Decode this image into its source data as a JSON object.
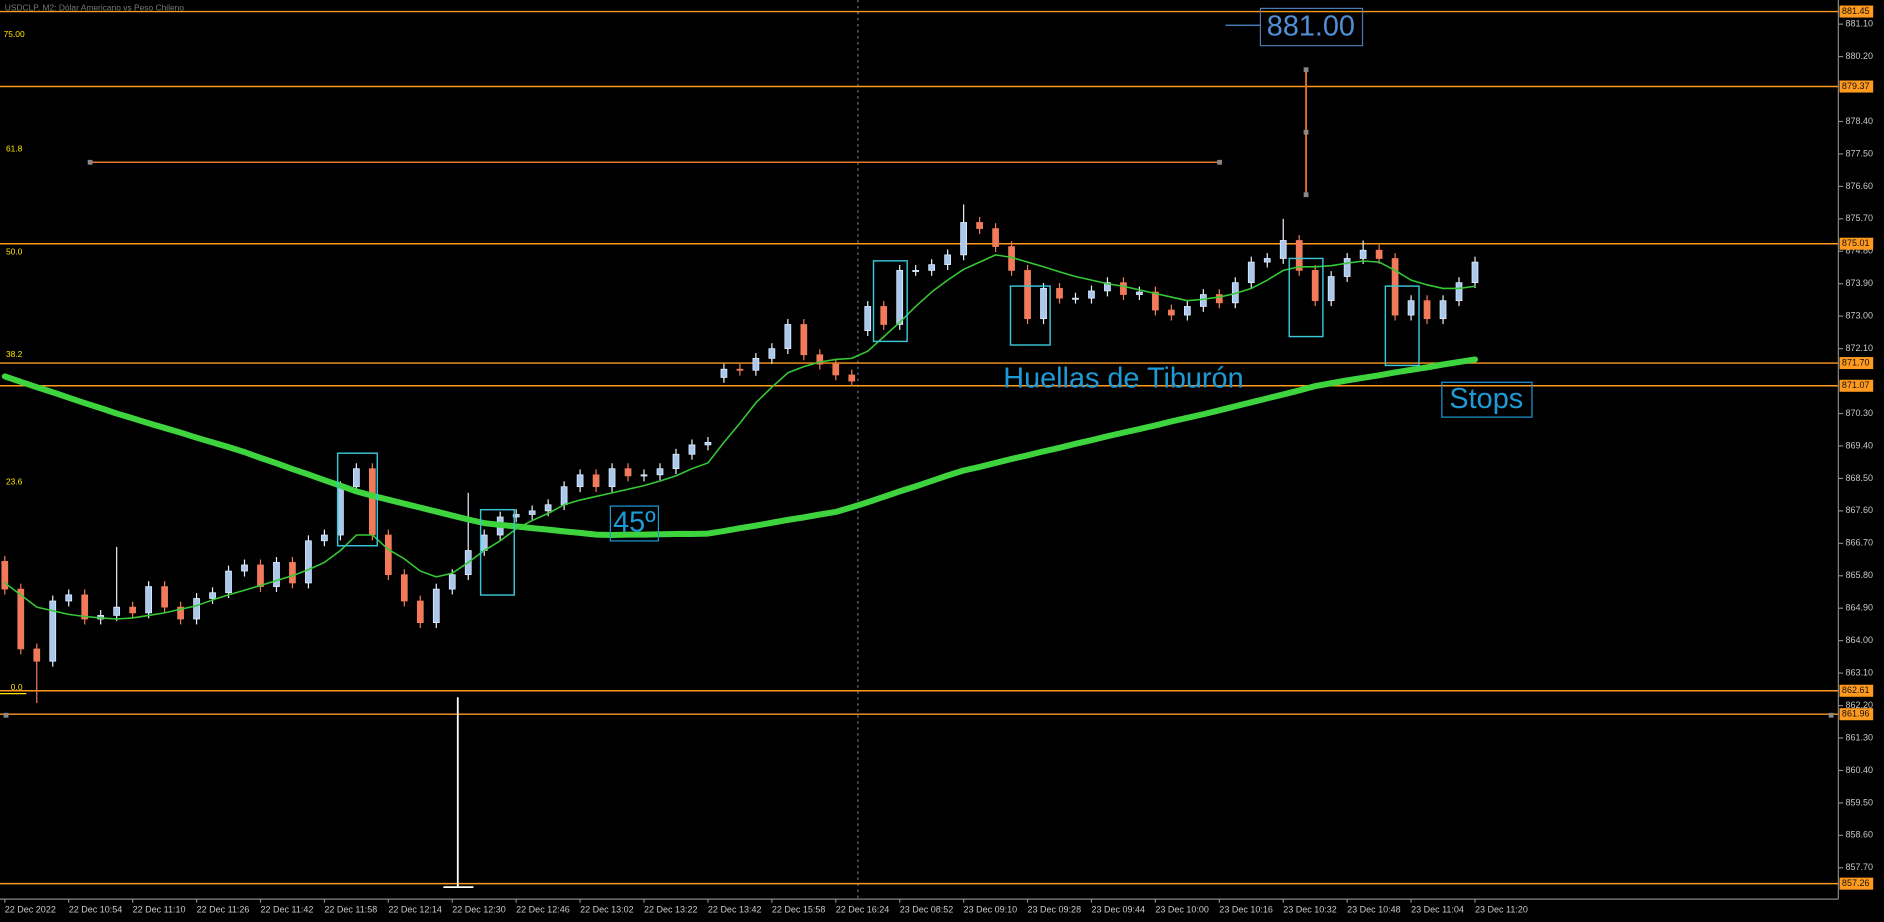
{
  "chart_data": {
    "type": "candlestick",
    "title": "USDCLP, M2: Dólar Americano vs Peso Chileno",
    "up_color": "#a8c8ee",
    "down_color": "#f07a5a",
    "level_color": "#ff9a1e",
    "grid": false,
    "ylim": [
      856.83,
      881.77
    ],
    "yticks": [
      {
        "value": 881.1,
        "label": "881.10"
      },
      {
        "value": 880.2,
        "label": "880.20"
      },
      {
        "value": 878.4,
        "label": "878.40"
      },
      {
        "value": 877.5,
        "label": "877.50"
      },
      {
        "value": 876.6,
        "label": "876.60"
      },
      {
        "value": 875.7,
        "label": "875.70"
      },
      {
        "value": 874.8,
        "label": "874.80"
      },
      {
        "value": 873.9,
        "label": "873.90"
      },
      {
        "value": 873,
        "label": "873.00"
      },
      {
        "value": 872.1,
        "label": "872.10"
      },
      {
        "value": 870.3,
        "label": "870.30"
      },
      {
        "value": 869.4,
        "label": "869.40"
      },
      {
        "value": 868.5,
        "label": "868.50"
      },
      {
        "value": 867.6,
        "label": "867.60"
      },
      {
        "value": 866.7,
        "label": "866.70"
      },
      {
        "value": 865.8,
        "label": "865.80"
      },
      {
        "value": 864.9,
        "label": "864.90"
      },
      {
        "value": 864,
        "label": "864.00"
      },
      {
        "value": 863.1,
        "label": "863.10"
      },
      {
        "value": 862.2,
        "label": "862.20"
      },
      {
        "value": 861.3,
        "label": "861.30"
      },
      {
        "value": 860.4,
        "label": "860.40"
      },
      {
        "value": 859.5,
        "label": "859.50"
      },
      {
        "value": 858.6,
        "label": "858.60"
      },
      {
        "value": 857.7,
        "label": "857.70"
      }
    ],
    "levels": [
      881.45,
      879.37,
      875.01,
      {
        "value": 871.7,
        "label": "871.70"
      },
      871.07,
      862.61,
      861.96,
      857.26
    ],
    "fib_labels": [
      "75.00",
      "61.8",
      "50.0",
      "38.2",
      "23.6",
      "0.0"
    ],
    "annotations": [
      "881.00",
      "Huellas de Tiburón",
      "Stops",
      "45º"
    ],
    "categories": [
      "22 Dec 2022",
      null,
      null,
      null,
      "22 Dec 10:54",
      null,
      null,
      null,
      "22 Dec 11:10",
      null,
      null,
      null,
      "22 Dec 11:26",
      null,
      null,
      null,
      "22 Dec 11:42",
      null,
      null,
      null,
      "22 Dec 11:58",
      null,
      null,
      null,
      "22 Dec 12:14",
      null,
      null,
      null,
      "22 Dec 12:30",
      null,
      null,
      null,
      "22 Dec 12:46",
      null,
      null,
      null,
      "22 Dec 13:02",
      null,
      null,
      null,
      "22 Dec 13:22",
      null,
      null,
      null,
      "22 Dec 13:42",
      null,
      null,
      null,
      "22 Dec 15:58",
      null,
      null,
      null,
      "22 Dec 16:24",
      null,
      null,
      null,
      "23 Dec 08:52",
      null,
      null,
      null,
      "23 Dec 09:10",
      null,
      null,
      null,
      "23 Dec 09:28",
      null,
      null,
      null,
      "23 Dec 09:44",
      null,
      null,
      null,
      "23 Dec 10:00",
      null,
      null,
      null,
      "23 Dec 10:16",
      null,
      null,
      null,
      "23 Dec 10:32",
      null,
      null,
      null,
      "23 Dec 10:48",
      null,
      null,
      null,
      "23 Dec 11:04",
      null,
      null,
      null,
      "23 Dec 11:20"
    ],
    "open": [
      866.2,
      865.43,
      863.77,
      863.43,
      865.1,
      865.27,
      864.6,
      864.7,
      864.93,
      864.77,
      865.5,
      864.93,
      864.6,
      865.17,
      865.33,
      865.93,
      866.1,
      865.5,
      866.17,
      865.6,
      866.77,
      866.93,
      868.27,
      868.77,
      866.93,
      865.83,
      865.1,
      864.5,
      865.43,
      865.83,
      866.5,
      866.93,
      867.43,
      867.5,
      867.6,
      867.77,
      868.27,
      868.6,
      868.27,
      868.77,
      868.57,
      868.6,
      868.77,
      869.17,
      869.43,
      871.3,
      871.53,
      871.5,
      871.83,
      872.1,
      872.77,
      871.93,
      871.67,
      871.37,
      872.6,
      873.27,
      872.77,
      874.27,
      874.27,
      874.43,
      874.7,
      875.6,
      875.43,
      874.93,
      874.27,
      872.93,
      873.77,
      873.5,
      873.5,
      873.7,
      873.93,
      873.6,
      873.67,
      873.17,
      873.03,
      873.27,
      873.6,
      873.37,
      873.93,
      874.5,
      874.6,
      875.1,
      874.27,
      873.43,
      874.1,
      874.6,
      874.83,
      874.6,
      873.03,
      873.43,
      872.93,
      873.43,
      873.93
    ],
    "high": [
      866.35,
      865.58,
      863.92,
      865.25,
      865.42,
      865.42,
      864.85,
      866.6,
      865.08,
      865.65,
      865.65,
      865.08,
      865.32,
      865.48,
      866.08,
      866.25,
      866.25,
      866.32,
      866.32,
      866.92,
      867.08,
      868.42,
      868.92,
      868.92,
      867.08,
      865.98,
      865.25,
      865.58,
      865.98,
      868.1,
      867.08,
      867.58,
      867.65,
      867.75,
      867.92,
      868.42,
      868.75,
      868.75,
      868.92,
      868.92,
      868.75,
      868.92,
      869.32,
      869.58,
      869.65,
      871.68,
      871.68,
      871.98,
      872.25,
      872.92,
      872.92,
      872.08,
      871.82,
      871.52,
      873.42,
      873.42,
      874.42,
      874.42,
      874.58,
      874.85,
      876.1,
      875.75,
      875.58,
      875.08,
      874.42,
      873.92,
      873.92,
      873.65,
      873.85,
      874.08,
      874.08,
      873.82,
      873.82,
      873.32,
      873.42,
      873.75,
      873.75,
      874.08,
      874.65,
      874.75,
      875.7,
      875.25,
      874.42,
      874.25,
      874.75,
      875.1,
      874.98,
      874.75,
      873.58,
      873.58,
      873.58,
      874.08,
      874.65
    ],
    "low": [
      865.28,
      863.62,
      862.27,
      863.28,
      864.95,
      864.45,
      864.45,
      864.55,
      864.62,
      864.62,
      864.78,
      864.45,
      864.45,
      865.02,
      865.18,
      865.78,
      865.35,
      865.35,
      865.45,
      865.45,
      866.62,
      866.78,
      868.12,
      866.78,
      865.68,
      864.95,
      864.35,
      864.35,
      865.28,
      865.68,
      866.35,
      866.78,
      867.28,
      867.35,
      867.45,
      867.62,
      868.12,
      868.12,
      868.12,
      868.42,
      868.42,
      868.45,
      868.62,
      869.02,
      869.28,
      871.15,
      871.35,
      871.35,
      871.68,
      871.95,
      871.78,
      871.52,
      871.22,
      871.05,
      872.45,
      872.62,
      872.62,
      874.12,
      874.12,
      874.28,
      874.55,
      875.28,
      874.78,
      874.12,
      872.78,
      872.78,
      873.35,
      873.35,
      873.35,
      873.55,
      873.45,
      873.45,
      873.02,
      872.88,
      872.88,
      873.12,
      873.22,
      873.22,
      873.78,
      874.35,
      874.45,
      874.12,
      873.28,
      873.28,
      873.95,
      874.45,
      874.45,
      872.88,
      872.88,
      872.78,
      872.78,
      873.28,
      873.78
    ],
    "close": [
      865.43,
      863.77,
      863.43,
      865.1,
      865.27,
      864.6,
      864.7,
      864.93,
      864.77,
      865.5,
      864.93,
      864.6,
      865.17,
      865.33,
      865.93,
      866.1,
      865.5,
      866.17,
      865.6,
      866.77,
      866.93,
      868.27,
      868.77,
      866.93,
      865.83,
      865.1,
      864.5,
      865.43,
      865.83,
      866.5,
      866.93,
      867.43,
      867.5,
      867.6,
      867.77,
      868.27,
      868.6,
      868.27,
      868.77,
      868.57,
      868.6,
      868.77,
      869.17,
      869.43,
      869.5,
      871.53,
      871.5,
      871.83,
      872.1,
      872.77,
      871.93,
      871.67,
      871.37,
      871.2,
      873.27,
      872.77,
      874.27,
      874.27,
      874.43,
      874.7,
      875.6,
      875.43,
      874.93,
      874.27,
      872.93,
      873.77,
      873.5,
      873.5,
      873.7,
      873.93,
      873.6,
      873.67,
      873.17,
      873.03,
      873.27,
      873.6,
      873.37,
      873.93,
      874.5,
      874.6,
      875.1,
      874.27,
      873.43,
      874.1,
      874.6,
      874.83,
      874.6,
      873.03,
      873.43,
      872.93,
      873.43,
      873.93,
      874.5
    ],
    "lines": [
      {
        "color": "#3ed43e",
        "width": 5,
        "values": [
          871.33,
          871.18,
          871.03,
          870.89,
          870.74,
          870.59,
          870.45,
          870.3,
          870.17,
          870.03,
          869.9,
          869.77,
          869.63,
          869.5,
          869.37,
          869.23,
          869.07,
          868.92,
          868.76,
          868.61,
          868.45,
          868.3,
          868.14,
          868.02,
          867.91,
          867.8,
          867.69,
          867.58,
          867.47,
          867.36,
          867.26,
          867.21,
          867.17,
          867.12,
          867.08,
          867.03,
          866.99,
          866.94,
          866.93,
          866.94,
          866.94,
          866.95,
          866.96,
          866.96,
          866.97,
          867.04,
          867.12,
          867.19,
          867.27,
          867.35,
          867.42,
          867.5,
          867.57,
          867.7,
          867.84,
          867.99,
          868.14,
          868.28,
          868.43,
          868.58,
          868.72,
          868.82,
          868.93,
          869.04,
          869.14,
          869.25,
          869.35,
          869.46,
          869.56,
          869.67,
          869.77,
          869.87,
          869.97,
          870.08,
          870.18,
          870.28,
          870.39,
          870.5,
          870.61,
          870.72,
          870.83,
          870.94,
          871.06,
          871.14,
          871.22,
          871.29,
          871.36,
          871.44,
          871.51,
          871.58,
          871.66,
          871.73,
          871.8
        ]
      },
      {
        "color": "#36c936",
        "width": 1.3,
        "values": [
          865.6,
          865.27,
          864.93,
          864.83,
          864.73,
          864.67,
          864.63,
          864.6,
          864.63,
          864.7,
          864.77,
          864.87,
          864.97,
          865.13,
          865.27,
          865.4,
          865.53,
          865.67,
          865.8,
          865.97,
          866.17,
          866.5,
          866.93,
          866.93,
          866.53,
          866.27,
          865.93,
          865.77,
          865.87,
          866.17,
          866.5,
          866.77,
          867.1,
          867.33,
          867.53,
          867.77,
          867.9,
          868.0,
          868.1,
          868.2,
          868.3,
          868.43,
          868.57,
          868.77,
          868.93,
          869.5,
          870.03,
          870.6,
          871.03,
          871.43,
          871.6,
          871.73,
          871.8,
          871.83,
          872.03,
          872.43,
          872.83,
          873.27,
          873.67,
          874.0,
          874.3,
          874.5,
          874.7,
          874.63,
          874.5,
          874.37,
          874.23,
          874.1,
          874.0,
          873.9,
          873.83,
          873.73,
          873.63,
          873.53,
          873.43,
          873.47,
          873.53,
          873.63,
          873.77,
          874.0,
          874.27,
          874.37,
          874.37,
          874.4,
          874.47,
          874.53,
          874.5,
          874.27,
          874.0,
          873.87,
          873.77,
          873.77,
          873.83
        ]
      }
    ]
  }
}
